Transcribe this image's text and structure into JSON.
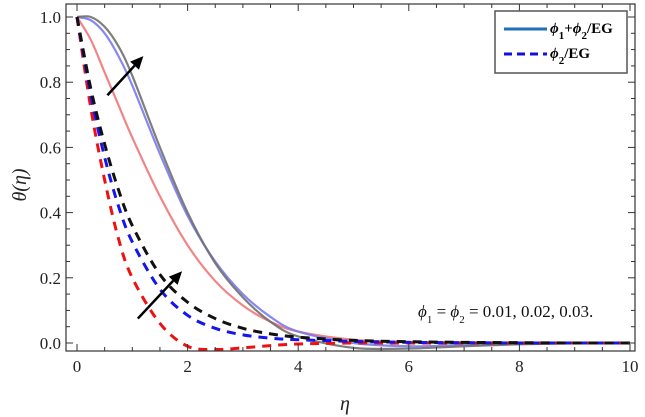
{
  "chart_data": {
    "type": "line",
    "title": "",
    "xlabel": "η",
    "ylabel": "θ(η)",
    "xlim": [
      0,
      10
    ],
    "ylim": [
      -0.05,
      1.03
    ],
    "xticks": [
      0,
      2,
      4,
      6,
      8,
      10
    ],
    "xtick_labels": [
      "0",
      "2",
      "4",
      "6",
      "8",
      "10"
    ],
    "yticks": [
      0.0,
      0.2,
      0.4,
      0.6,
      0.8,
      1.0
    ],
    "ytick_labels": [
      "0.0",
      "0.2",
      "0.4",
      "0.6",
      "0.8",
      "1.0"
    ],
    "grid": false,
    "legend": {
      "position": "upper right",
      "entries": [
        {
          "label": "ϕ1+ϕ2/EG",
          "style": "solid",
          "color": "#1f6fb4"
        },
        {
          "label": "ϕ2/EG",
          "style": "dashed",
          "color": "#1010dd"
        }
      ]
    },
    "annotation": "ϕ1 = ϕ2 = 0.01, 0.02, 0.03.",
    "x": [
      0,
      0.25,
      0.5,
      0.75,
      1,
      1.5,
      2,
      2.5,
      3,
      3.5,
      4,
      5,
      6,
      7,
      8,
      9,
      10
    ],
    "series": [
      {
        "name": "ϕ1+ϕ2/EG, ϕ=0.01",
        "style": "solid",
        "color": "#f07878",
        "values": [
          1.0,
          0.93,
          0.83,
          0.73,
          0.63,
          0.45,
          0.3,
          0.19,
          0.115,
          0.065,
          0.035,
          0.01,
          0.003,
          0.001,
          0.0,
          0.0,
          0.0
        ]
      },
      {
        "name": "ϕ1+ϕ2/EG, ϕ=0.02",
        "style": "solid",
        "color": "#7a7af0",
        "values": [
          1.0,
          0.99,
          0.95,
          0.88,
          0.79,
          0.58,
          0.39,
          0.25,
          0.15,
          0.08,
          0.035,
          0.0,
          -0.01,
          -0.006,
          -0.002,
          0.0,
          0.0
        ]
      },
      {
        "name": "ϕ1+ϕ2/EG, ϕ=0.03",
        "style": "solid",
        "color": "#707070",
        "values": [
          1.0,
          1.0,
          0.97,
          0.91,
          0.82,
          0.6,
          0.4,
          0.245,
          0.14,
          0.065,
          0.02,
          -0.015,
          -0.017,
          -0.01,
          -0.004,
          -0.001,
          0.0
        ]
      },
      {
        "name": "ϕ2/EG, ϕ=0.01",
        "style": "dashed",
        "color": "#ee1111",
        "values": [
          1.0,
          0.72,
          0.5,
          0.32,
          0.2,
          0.06,
          -0.01,
          -0.02,
          -0.015,
          -0.008,
          -0.003,
          0.0,
          0.0,
          0.0,
          0.0,
          0.0,
          0.0
        ]
      },
      {
        "name": "ϕ2/EG, ϕ=0.02",
        "style": "dashed",
        "color": "#1515ee",
        "values": [
          1.0,
          0.76,
          0.57,
          0.42,
          0.31,
          0.165,
          0.085,
          0.045,
          0.025,
          0.015,
          0.01,
          0.005,
          0.002,
          0.001,
          0.0,
          0.0,
          0.0
        ]
      },
      {
        "name": "ϕ2/EG, ϕ=0.03",
        "style": "dashed",
        "color": "#111111",
        "values": [
          1.0,
          0.78,
          0.61,
          0.47,
          0.36,
          0.21,
          0.125,
          0.075,
          0.045,
          0.028,
          0.018,
          0.008,
          0.004,
          0.002,
          0.001,
          0.0,
          0.0
        ]
      }
    ],
    "arrows": [
      {
        "from": [
          0.55,
          0.76
        ],
        "to": [
          1.2,
          0.88
        ],
        "meaning": "increasing ϕ (solid curves)"
      },
      {
        "from": [
          1.1,
          0.075
        ],
        "to": [
          1.9,
          0.22
        ],
        "meaning": "increasing ϕ (dashed curves)"
      }
    ]
  }
}
